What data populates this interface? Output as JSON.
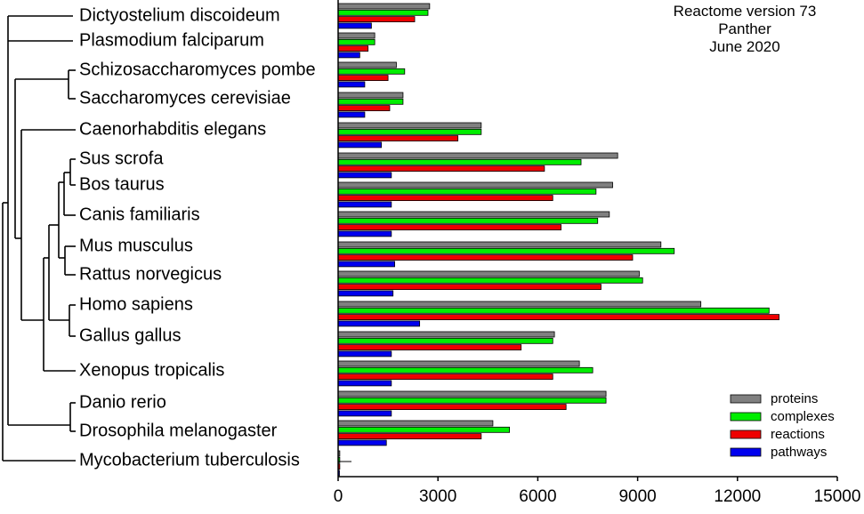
{
  "chart_data": {
    "type": "bar",
    "orientation": "horizontal",
    "title_lines": [
      "Reactome version 73",
      "Panther",
      "June 2020"
    ],
    "categories": [
      "Dictyostelium discoideum",
      "Plasmodium falciparum",
      "Schizosaccharomyces pombe",
      "Saccharomyces cerevisiae",
      "Caenorhabditis elegans",
      "Sus scrofa",
      "Bos taurus",
      "Canis familiaris",
      "Mus musculus",
      "Rattus norvegicus",
      "Homo sapiens",
      "Gallus gallus",
      "Xenopus tropicalis",
      "Danio rerio",
      "Drosophila melanogaster",
      "Mycobacterium tuberculosis"
    ],
    "series": [
      {
        "name": "proteins",
        "color": "#808080",
        "values": [
          2750,
          1100,
          1750,
          1950,
          4300,
          8400,
          8250,
          8150,
          9700,
          9050,
          10900,
          6500,
          7250,
          8050,
          4650,
          50
        ]
      },
      {
        "name": "complexes",
        "color": "#00ee00",
        "values": [
          2700,
          1100,
          2000,
          1950,
          4300,
          7300,
          7750,
          7800,
          10100,
          9150,
          12950,
          6450,
          7650,
          8050,
          5150,
          50
        ]
      },
      {
        "name": "reactions",
        "color": "#ee0000",
        "values": [
          2300,
          900,
          1500,
          1550,
          3600,
          6200,
          6450,
          6700,
          8850,
          7900,
          13250,
          5500,
          6450,
          6850,
          4300,
          50
        ]
      },
      {
        "name": "pathways",
        "color": "#0000ee",
        "values": [
          1000,
          650,
          800,
          800,
          1300,
          1600,
          1600,
          1600,
          1700,
          1650,
          2450,
          1600,
          1600,
          1600,
          1450,
          40
        ]
      }
    ],
    "xlim": [
      0,
      15000
    ],
    "xticks": [
      0,
      3000,
      6000,
      9000,
      12000,
      15000
    ],
    "xtick_labels": [
      "0",
      "3000",
      "6000",
      "9000",
      "12000",
      "15000"
    ],
    "legend_position": "bottom-right",
    "grid": false
  }
}
